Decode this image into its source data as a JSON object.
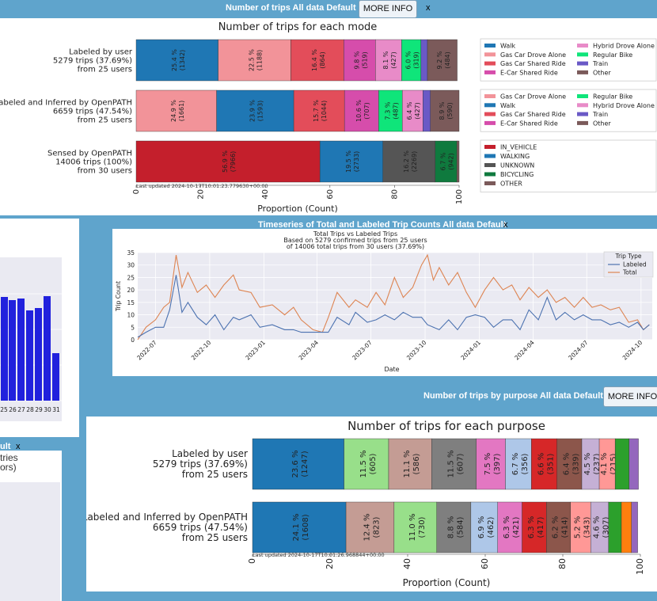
{
  "modes_card": {
    "header_title": "Number of trips All data Default",
    "more_info": "MORE INFO",
    "close": "x",
    "chart_title": "Number of trips for each mode",
    "xlabel": "Proportion (Count)",
    "xticks": [
      "0",
      "20",
      "40",
      "60",
      "80",
      "100"
    ],
    "last_updated": "Last updated 2024-10-17T10:01:23.779630+00:00"
  },
  "timeseries_card": {
    "header_title": "Timeseries of Total and Labeled Trip Counts All data Default",
    "close": "x",
    "chart_title_lines": [
      "Total Trips vs Labeled Trips",
      "Based on 5279 confirmed trips from 25 users",
      "of 14006 total  trips from 30 users (37.69%)"
    ],
    "ylabel": "Trip Count",
    "xlabel": "Date",
    "legend_title": "Trip Type",
    "legend_labeled": "Labeled",
    "legend_total": "Total"
  },
  "purpose_card": {
    "header_title": "Number of trips by purpose All data Default",
    "more_info": "MORE INFO",
    "chart_title": "Number of trips for each purpose",
    "xlabel": "Proportion (Count)",
    "xticks": [
      "0",
      "20",
      "40",
      "60",
      "80",
      "100"
    ],
    "last_updated": "Last updated 2024-10-17T10:01:26.968844+00:00"
  },
  "left_bar_card": {
    "xticks": [
      "25",
      "26",
      "27",
      "28",
      "29",
      "30",
      "31"
    ]
  },
  "left_bottom_card": {
    "header_fragment": "ult",
    "close": "x",
    "text_line1": "tries",
    "text_line2": "ors)"
  },
  "chart_data": [
    {
      "type": "bar",
      "orientation": "horizontal-stacked",
      "title": "Number of trips for each mode",
      "xlabel": "Proportion (Count)",
      "xlim": [
        0,
        100
      ],
      "rows": [
        {
          "label_lines": [
            "Labeled by user",
            "5279 trips (37.69%)",
            "from 25 users"
          ],
          "segments": [
            {
              "name": "Walk",
              "pct": 25.4,
              "count": 1342,
              "color": "#1f77b4"
            },
            {
              "name": "Gas Car Drove Alone",
              "pct": 22.5,
              "count": 1188,
              "color": "#f29399"
            },
            {
              "name": "Gas Car Shared Ride",
              "pct": 16.4,
              "count": 864,
              "color": "#e34d5a"
            },
            {
              "name": "E-Car Shared Ride",
              "pct": 9.8,
              "count": 519,
              "color": "#d64dab"
            },
            {
              "name": "Hybrid Drove Alone",
              "pct": 8.1,
              "count": 427,
              "color": "#e88bc8"
            },
            {
              "name": "Regular Bike",
              "pct": 6.0,
              "count": 319,
              "color": "#0fe57a"
            },
            {
              "name": "Train",
              "pct": 2.0,
              "count": null,
              "color": "#6a59c6"
            },
            {
              "name": "Other",
              "pct": 9.2,
              "count": 484,
              "color": "#7b5a5a"
            }
          ],
          "legend": [
            "Walk",
            "Gas Car Drove Alone",
            "Gas Car Shared Ride",
            "E-Car Shared Ride",
            "Hybrid Drove Alone",
            "Regular Bike",
            "Train",
            "Other"
          ]
        },
        {
          "label_lines": [
            "Labeled and Inferred by OpenPATH",
            "6659 trips (47.54%)",
            "from 25 users"
          ],
          "segments": [
            {
              "name": "Gas Car Drove Alone",
              "pct": 24.9,
              "count": 1661,
              "color": "#f29399"
            },
            {
              "name": "Walk",
              "pct": 23.9,
              "count": 1593,
              "color": "#1f77b4"
            },
            {
              "name": "Gas Car Shared Ride",
              "pct": 15.7,
              "count": 1044,
              "color": "#e34d5a"
            },
            {
              "name": "E-Car Shared Ride",
              "pct": 10.6,
              "count": 707,
              "color": "#d64dab"
            },
            {
              "name": "Regular Bike",
              "pct": 7.3,
              "count": 487,
              "color": "#0fe57a"
            },
            {
              "name": "Hybrid Drove Alone",
              "pct": 6.4,
              "count": 427,
              "color": "#e88bc8"
            },
            {
              "name": "Train",
              "pct": 2.3,
              "count": null,
              "color": "#6a59c6"
            },
            {
              "name": "Other",
              "pct": 8.9,
              "count": 590,
              "color": "#7b5a5a"
            }
          ],
          "legend": [
            "Gas Car Drove Alone",
            "Walk",
            "Gas Car Shared Ride",
            "E-Car Shared Ride",
            "Regular Bike",
            "Hybrid Drove Alone",
            "Train",
            "Other"
          ]
        },
        {
          "label_lines": [
            "Sensed by OpenPATH",
            "14006 trips (100%)",
            "from 30 users"
          ],
          "segments": [
            {
              "name": "IN_VEHICLE",
              "pct": 56.9,
              "count": 7966,
              "color": "#c41f2c"
            },
            {
              "name": "WALKING",
              "pct": 19.5,
              "count": 2733,
              "color": "#1f77b4"
            },
            {
              "name": "UNKNOWN",
              "pct": 16.2,
              "count": 2269,
              "color": "#555555"
            },
            {
              "name": "BICYCLING",
              "pct": 6.7,
              "count": 942,
              "color": "#0f7a3e"
            },
            {
              "name": "OTHER",
              "pct": 0.7,
              "count": null,
              "color": "#7b5a5a"
            }
          ],
          "legend": [
            "IN_VEHICLE",
            "WALKING",
            "UNKNOWN",
            "BICYCLING",
            "OTHER"
          ]
        }
      ]
    },
    {
      "type": "line",
      "title": "Total Trips vs Labeled Trips",
      "xlabel": "Date",
      "ylabel": "Trip Count",
      "ylim": [
        0,
        35
      ],
      "yticks": [
        0,
        5,
        10,
        15,
        20,
        25,
        30,
        35
      ],
      "xticks": [
        "2022-07",
        "2022-10",
        "2023-01",
        "2023-04",
        "2023-07",
        "2023-10",
        "2024-01",
        "2024-04",
        "2024-07",
        "2024-10"
      ],
      "x_range": [
        "2022-06-01",
        "2024-10-20"
      ],
      "series": [
        {
          "name": "Total",
          "color": "#dd8452",
          "points": [
            [
              "2022-06-01",
              0
            ],
            [
              "2022-06-15",
              5
            ],
            [
              "2022-07-01",
              8
            ],
            [
              "2022-07-15",
              13
            ],
            [
              "2022-07-25",
              15
            ],
            [
              "2022-08-05",
              34
            ],
            [
              "2022-08-15",
              21
            ],
            [
              "2022-08-25",
              27
            ],
            [
              "2022-09-10",
              19
            ],
            [
              "2022-09-25",
              22
            ],
            [
              "2022-10-10",
              17
            ],
            [
              "2022-10-25",
              22
            ],
            [
              "2022-11-10",
              26
            ],
            [
              "2022-11-20",
              20
            ],
            [
              "2022-12-10",
              19
            ],
            [
              "2022-12-25",
              13
            ],
            [
              "2023-01-15",
              14
            ],
            [
              "2023-02-05",
              10
            ],
            [
              "2023-02-20",
              13
            ],
            [
              "2023-03-05",
              8
            ],
            [
              "2023-03-25",
              4
            ],
            [
              "2023-04-10",
              3
            ],
            [
              "2023-04-20",
              9
            ],
            [
              "2023-05-05",
              19
            ],
            [
              "2023-05-25",
              13
            ],
            [
              "2023-06-05",
              16
            ],
            [
              "2023-06-25",
              13
            ],
            [
              "2023-07-10",
              19
            ],
            [
              "2023-07-25",
              14
            ],
            [
              "2023-08-10",
              25
            ],
            [
              "2023-08-25",
              17
            ],
            [
              "2023-09-10",
              21
            ],
            [
              "2023-09-25",
              30
            ],
            [
              "2023-10-05",
              34
            ],
            [
              "2023-10-15",
              24
            ],
            [
              "2023-10-25",
              29
            ],
            [
              "2023-11-10",
              22
            ],
            [
              "2023-11-25",
              27
            ],
            [
              "2023-12-10",
              19
            ],
            [
              "2023-12-25",
              13
            ],
            [
              "2024-01-10",
              20
            ],
            [
              "2024-01-25",
              25
            ],
            [
              "2024-02-10",
              20
            ],
            [
              "2024-02-25",
              22
            ],
            [
              "2024-03-10",
              16
            ],
            [
              "2024-03-25",
              21
            ],
            [
              "2024-04-10",
              17
            ],
            [
              "2024-04-25",
              20
            ],
            [
              "2024-05-10",
              15
            ],
            [
              "2024-05-25",
              17
            ],
            [
              "2024-06-10",
              13
            ],
            [
              "2024-06-25",
              17
            ],
            [
              "2024-07-10",
              13
            ],
            [
              "2024-07-25",
              14
            ],
            [
              "2024-08-10",
              12
            ],
            [
              "2024-08-25",
              13
            ],
            [
              "2024-09-10",
              7
            ],
            [
              "2024-09-25",
              8
            ],
            [
              "2024-10-05",
              4
            ],
            [
              "2024-10-15",
              6
            ]
          ]
        },
        {
          "name": "Labeled",
          "color": "#4c72b0",
          "points": [
            [
              "2022-06-01",
              1
            ],
            [
              "2022-06-15",
              3
            ],
            [
              "2022-07-01",
              5
            ],
            [
              "2022-07-15",
              5
            ],
            [
              "2022-07-25",
              12
            ],
            [
              "2022-08-05",
              26
            ],
            [
              "2022-08-15",
              11
            ],
            [
              "2022-08-25",
              15
            ],
            [
              "2022-09-10",
              9
            ],
            [
              "2022-09-25",
              6
            ],
            [
              "2022-10-10",
              10
            ],
            [
              "2022-10-25",
              4
            ],
            [
              "2022-11-10",
              9
            ],
            [
              "2022-11-20",
              8
            ],
            [
              "2022-12-10",
              10
            ],
            [
              "2022-12-25",
              5
            ],
            [
              "2023-01-15",
              6
            ],
            [
              "2023-02-05",
              4
            ],
            [
              "2023-02-20",
              4
            ],
            [
              "2023-03-05",
              3
            ],
            [
              "2023-03-25",
              3
            ],
            [
              "2023-04-10",
              3
            ],
            [
              "2023-04-20",
              3
            ],
            [
              "2023-05-05",
              9
            ],
            [
              "2023-05-25",
              6
            ],
            [
              "2023-06-05",
              11
            ],
            [
              "2023-06-25",
              7
            ],
            [
              "2023-07-10",
              8
            ],
            [
              "2023-07-25",
              10
            ],
            [
              "2023-08-10",
              8
            ],
            [
              "2023-08-25",
              11
            ],
            [
              "2023-09-10",
              9
            ],
            [
              "2023-09-25",
              9
            ],
            [
              "2023-10-05",
              6
            ],
            [
              "2023-10-15",
              5
            ],
            [
              "2023-10-25",
              4
            ],
            [
              "2023-11-10",
              8
            ],
            [
              "2023-11-25",
              4
            ],
            [
              "2023-12-10",
              9
            ],
            [
              "2023-12-25",
              10
            ],
            [
              "2024-01-10",
              9
            ],
            [
              "2024-01-25",
              5
            ],
            [
              "2024-02-10",
              8
            ],
            [
              "2024-02-25",
              8
            ],
            [
              "2024-03-10",
              4
            ],
            [
              "2024-03-25",
              12
            ],
            [
              "2024-04-10",
              8
            ],
            [
              "2024-04-25",
              17
            ],
            [
              "2024-05-10",
              8
            ],
            [
              "2024-05-25",
              11
            ],
            [
              "2024-06-10",
              8
            ],
            [
              "2024-06-25",
              10
            ],
            [
              "2024-07-10",
              8
            ],
            [
              "2024-07-25",
              8
            ],
            [
              "2024-08-10",
              6
            ],
            [
              "2024-08-25",
              7
            ],
            [
              "2024-09-10",
              5
            ],
            [
              "2024-09-25",
              7
            ],
            [
              "2024-10-05",
              4
            ],
            [
              "2024-10-15",
              6
            ]
          ]
        }
      ]
    },
    {
      "type": "bar",
      "orientation": "horizontal-stacked",
      "title": "Number of trips for each purpose",
      "xlabel": "Proportion (Count)",
      "xlim": [
        0,
        100
      ],
      "rows": [
        {
          "label_lines": [
            "Labeled by user",
            "5279 trips (37.69%)",
            "from 25 users"
          ],
          "segments": [
            {
              "pct": 23.6,
              "count": 1247,
              "color": "#1f77b4"
            },
            {
              "pct": 11.5,
              "count": 605,
              "color": "#98df8a"
            },
            {
              "pct": 11.1,
              "count": 586,
              "color": "#c49c94"
            },
            {
              "pct": 11.5,
              "count": 607,
              "color": "#7f7f7f"
            },
            {
              "pct": 7.5,
              "count": 397,
              "color": "#e377c2"
            },
            {
              "pct": 6.7,
              "count": 356,
              "color": "#aec7e8"
            },
            {
              "pct": 6.6,
              "count": 351,
              "color": "#d62728"
            },
            {
              "pct": 6.4,
              "count": 339,
              "color": "#8c564b"
            },
            {
              "pct": 4.5,
              "count": 237,
              "color": "#c5b0d5"
            },
            {
              "pct": 4.1,
              "count": 215,
              "color": "#ff9896"
            },
            {
              "pct": 3.6,
              "count": null,
              "color": "#2ca02c"
            },
            {
              "pct": 2.4,
              "count": null,
              "color": "#9467bd"
            }
          ]
        },
        {
          "label_lines": [
            "Labeled and Inferred by OpenPATH",
            "6659 trips (47.54%)",
            "from 25 users"
          ],
          "segments": [
            {
              "pct": 24.1,
              "count": 1608,
              "color": "#1f77b4"
            },
            {
              "pct": 12.4,
              "count": 823,
              "color": "#c49c94"
            },
            {
              "pct": 11.0,
              "count": 730,
              "color": "#98df8a"
            },
            {
              "pct": 8.8,
              "count": 584,
              "color": "#7f7f7f"
            },
            {
              "pct": 6.9,
              "count": 462,
              "color": "#aec7e8"
            },
            {
              "pct": 6.3,
              "count": 421,
              "color": "#e377c2"
            },
            {
              "pct": 6.3,
              "count": 417,
              "color": "#d62728"
            },
            {
              "pct": 6.2,
              "count": 414,
              "color": "#8c564b"
            },
            {
              "pct": 5.2,
              "count": 343,
              "color": "#ff9896"
            },
            {
              "pct": 4.6,
              "count": 307,
              "color": "#c5b0d5"
            },
            {
              "pct": 3.3,
              "count": null,
              "color": "#2ca02c"
            },
            {
              "pct": 2.6,
              "count": null,
              "color": "#ff7f0e"
            },
            {
              "pct": 1.6,
              "count": null,
              "color": "#9467bd"
            }
          ]
        }
      ]
    }
  ]
}
